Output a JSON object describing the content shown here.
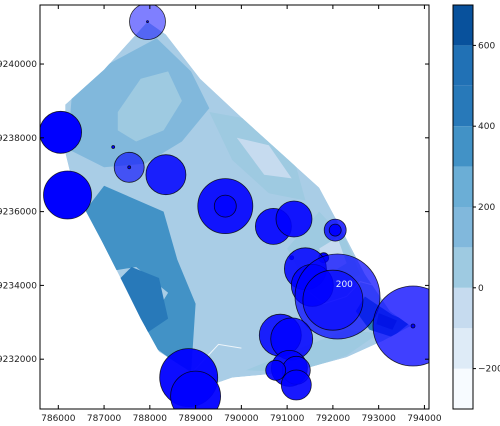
{
  "chart_data": {
    "type": "contour_scatter",
    "title": "",
    "xlabel": "",
    "ylabel": "",
    "xlim": [
      785600,
      794100
    ],
    "ylim": [
      9230650,
      9241600
    ],
    "x_ticks": [
      786000,
      787000,
      788000,
      789000,
      790000,
      791000,
      792000,
      793000,
      794000
    ],
    "x_tick_labels": [
      "786000",
      "787000",
      "788000",
      "789000",
      "790000",
      "791000",
      "792000",
      "793000",
      "794000"
    ],
    "y_ticks": [
      9232000,
      9234000,
      9236000,
      9238000,
      9240000
    ],
    "y_tick_labels": [
      "9232000",
      "9234000",
      "9236000",
      "9238000",
      "9240000"
    ],
    "grid": false,
    "domain_polygon": [
      [
        787950,
        9241150
      ],
      [
        788350,
        9240800
      ],
      [
        789100,
        9239600
      ],
      [
        790050,
        9238500
      ],
      [
        791700,
        9236650
      ],
      [
        792200,
        9235500
      ],
      [
        792700,
        9234300
      ],
      [
        793250,
        9233300
      ],
      [
        793700,
        9232900
      ],
      [
        793100,
        9232500
      ],
      [
        792300,
        9232050
      ],
      [
        791100,
        9231650
      ],
      [
        789800,
        9231500
      ],
      [
        789000,
        9231150
      ],
      [
        788900,
        9231650
      ],
      [
        788200,
        9232200
      ],
      [
        787800,
        9233100
      ],
      [
        787400,
        9234100
      ],
      [
        786950,
        9235200
      ],
      [
        786350,
        9236600
      ],
      [
        786150,
        9237600
      ],
      [
        786150,
        9238900
      ],
      [
        787000,
        9239850
      ]
    ],
    "contour_regions": [
      {
        "level": 100,
        "points": [
          [
            786300,
            9239200
          ],
          [
            787100,
            9240000
          ],
          [
            788150,
            9240700
          ],
          [
            788900,
            9239800
          ],
          [
            789300,
            9238800
          ],
          [
            788700,
            9237900
          ],
          [
            787900,
            9237300
          ],
          [
            787000,
            9237200
          ],
          [
            786200,
            9237700
          ]
        ]
      },
      {
        "level": 0,
        "points": [
          [
            787300,
            9238700
          ],
          [
            787800,
            9239600
          ],
          [
            788400,
            9239800
          ],
          [
            788700,
            9239000
          ],
          [
            788300,
            9238200
          ],
          [
            787700,
            9237900
          ],
          [
            787300,
            9238200
          ]
        ]
      },
      {
        "level": 0,
        "points": [
          [
            789300,
            9238700
          ],
          [
            790200,
            9238500
          ],
          [
            791200,
            9237200
          ],
          [
            791400,
            9236300
          ],
          [
            790600,
            9236500
          ],
          [
            789800,
            9237400
          ]
        ]
      },
      {
        "level": -100,
        "points": [
          [
            789900,
            9238000
          ],
          [
            790600,
            9237800
          ],
          [
            791100,
            9236900
          ],
          [
            790500,
            9237000
          ]
        ]
      },
      {
        "level": 0,
        "points": [
          [
            791000,
            9235000
          ],
          [
            791700,
            9236000
          ],
          [
            792300,
            9235200
          ],
          [
            792600,
            9234300
          ],
          [
            792000,
            9233900
          ],
          [
            791400,
            9234100
          ]
        ]
      },
      {
        "level": -100,
        "points": [
          [
            791700,
            9235000
          ],
          [
            792100,
            9235300
          ],
          [
            792300,
            9234600
          ],
          [
            791900,
            9234300
          ]
        ]
      },
      {
        "level": 0,
        "points": [
          [
            790100,
            9231700
          ],
          [
            791300,
            9232300
          ],
          [
            792300,
            9232800
          ],
          [
            793000,
            9232700
          ],
          [
            792300,
            9232100
          ],
          [
            791200,
            9231650
          ]
        ]
      },
      {
        "level": 300,
        "points": [
          [
            786200,
            9235400
          ],
          [
            786700,
            9234300
          ],
          [
            787700,
            9234500
          ],
          [
            788400,
            9233800
          ],
          [
            787800,
            9232600
          ],
          [
            788900,
            9231600
          ],
          [
            789000,
            9233500
          ],
          [
            788600,
            9234700
          ],
          [
            788300,
            9236000
          ],
          [
            787000,
            9236700
          ]
        ]
      },
      {
        "level": 400,
        "points": [
          [
            787200,
            9234000
          ],
          [
            787800,
            9232600
          ],
          [
            788400,
            9233100
          ],
          [
            788200,
            9234200
          ],
          [
            787600,
            9234500
          ]
        ]
      },
      {
        "level": 400,
        "points": [
          [
            792700,
            9233700
          ],
          [
            793300,
            9233200
          ],
          [
            793700,
            9233000
          ],
          [
            793300,
            9232600
          ],
          [
            792800,
            9232800
          ],
          [
            792500,
            9233300
          ]
        ]
      },
      {
        "level": 600,
        "points": [
          [
            793000,
            9233250
          ],
          [
            793400,
            9233050
          ],
          [
            793300,
            9232800
          ],
          [
            792950,
            9232950
          ]
        ]
      }
    ],
    "contour_lines": [
      {
        "level": 0,
        "points": [
          [
            791300,
            9234000
          ],
          [
            791800,
            9233500
          ],
          [
            792300,
            9233700
          ],
          [
            792600,
            9234100
          ],
          [
            792900,
            9234000
          ]
        ]
      },
      {
        "level": 0,
        "points": [
          [
            788900,
            9231600
          ],
          [
            789500,
            9232400
          ],
          [
            790000,
            9232300
          ]
        ]
      }
    ],
    "contour_labels": [
      {
        "text": "200",
        "x": 792250,
        "y": 9233950
      }
    ],
    "points": [
      {
        "x": 787950,
        "y": 9241150,
        "size": 36,
        "opacity": 0.5
      },
      {
        "x": 787950,
        "y": 9241150,
        "size": 2,
        "opacity": 1.0
      },
      {
        "x": 786050,
        "y": 9238150,
        "size": 42,
        "opacity": 1.0
      },
      {
        "x": 787200,
        "y": 9237750,
        "size": 3,
        "opacity": 1.0
      },
      {
        "x": 787550,
        "y": 9237200,
        "size": 30,
        "opacity": 0.6
      },
      {
        "x": 787550,
        "y": 9237200,
        "size": 3,
        "opacity": 1.0
      },
      {
        "x": 788350,
        "y": 9237000,
        "size": 40,
        "opacity": 0.85
      },
      {
        "x": 786200,
        "y": 9236450,
        "size": 48,
        "opacity": 1.0
      },
      {
        "x": 789650,
        "y": 9236150,
        "size": 55,
        "opacity": 0.9
      },
      {
        "x": 789650,
        "y": 9236150,
        "size": 22,
        "opacity": 0.8
      },
      {
        "x": 790700,
        "y": 9235600,
        "size": 36,
        "opacity": 0.9
      },
      {
        "x": 791150,
        "y": 9235800,
        "size": 36,
        "opacity": 0.9
      },
      {
        "x": 792050,
        "y": 9235500,
        "size": 22,
        "opacity": 0.8
      },
      {
        "x": 792050,
        "y": 9235500,
        "size": 12,
        "opacity": 1.0
      },
      {
        "x": 791100,
        "y": 9234750,
        "size": 4,
        "opacity": 1.0
      },
      {
        "x": 791800,
        "y": 9234750,
        "size": 10,
        "opacity": 1.0
      },
      {
        "x": 791400,
        "y": 9234450,
        "size": 42,
        "opacity": 0.85
      },
      {
        "x": 791550,
        "y": 9234000,
        "size": 42,
        "opacity": 0.85
      },
      {
        "x": 792100,
        "y": 9233700,
        "size": 85,
        "opacity": 0.7
      },
      {
        "x": 792000,
        "y": 9233600,
        "size": 60,
        "opacity": 0.6
      },
      {
        "x": 793750,
        "y": 9232900,
        "size": 80,
        "opacity": 0.75
      },
      {
        "x": 793750,
        "y": 9232900,
        "size": 4,
        "opacity": 1.0
      },
      {
        "x": 790850,
        "y": 9232650,
        "size": 42,
        "opacity": 0.85
      },
      {
        "x": 791100,
        "y": 9232550,
        "size": 42,
        "opacity": 0.85
      },
      {
        "x": 791050,
        "y": 9231750,
        "size": 36,
        "opacity": 0.9
      },
      {
        "x": 791200,
        "y": 9231700,
        "size": 28,
        "opacity": 0.8
      },
      {
        "x": 790750,
        "y": 9231700,
        "size": 20,
        "opacity": 0.9
      },
      {
        "x": 791200,
        "y": 9231300,
        "size": 30,
        "opacity": 0.9
      },
      {
        "x": 788850,
        "y": 9231500,
        "size": 58,
        "opacity": 0.95
      },
      {
        "x": 789000,
        "y": 9231000,
        "size": 50,
        "opacity": 0.95
      }
    ],
    "colorbar": {
      "min": -300,
      "max": 700,
      "levels": [
        -300,
        -200,
        -100,
        0,
        100,
        200,
        300,
        400,
        500,
        600,
        700
      ],
      "colors": [
        "#f7fbff",
        "#deebf7",
        "#c6dbef",
        "#9ecae1",
        "#81b8dc",
        "#6baed6",
        "#4292c6",
        "#2879b9",
        "#2171b5",
        "#08519c",
        "#08306b"
      ],
      "ticks": [
        -200,
        0,
        200,
        400,
        600
      ],
      "tick_labels": [
        "−200",
        "0",
        "200",
        "400",
        "600"
      ]
    },
    "background_color": "#a9cde6",
    "marker_color": "#0000ff"
  }
}
